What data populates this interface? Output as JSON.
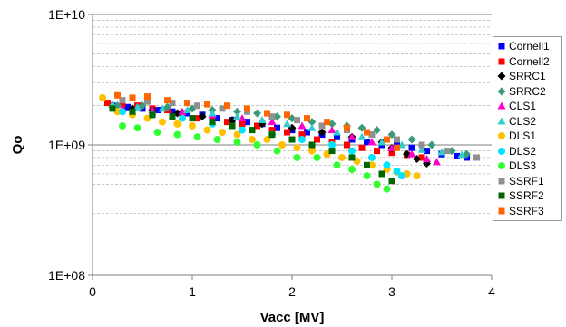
{
  "chart_data": {
    "type": "scatter",
    "xlabel": "Vacc [MV]",
    "ylabel": "Qo",
    "xlim": [
      0,
      4
    ],
    "ylim": [
      100000000.0,
      10000000000.0
    ],
    "y_scale": "log",
    "x_ticks": [
      "0",
      "1",
      "2",
      "3",
      "4"
    ],
    "y_ticks": [
      "1E+08",
      "1E+09",
      "1E+10"
    ],
    "grid": true,
    "legend_position": "right",
    "series": [
      {
        "name": "Cornell1",
        "color": "#0000ff",
        "marker": "square",
        "x": [
          0.2,
          0.35,
          0.5,
          0.65,
          0.8,
          0.95,
          1.1,
          1.25,
          1.4,
          1.55,
          1.7,
          1.85,
          2.0,
          2.15,
          2.3,
          2.45,
          2.6,
          2.75,
          2.9,
          3.05,
          3.2,
          3.35,
          3.5,
          3.65,
          3.75
        ],
        "y": [
          2000000000.0,
          1950000000.0,
          1900000000.0,
          1850000000.0,
          1800000000.0,
          1750000000.0,
          1700000000.0,
          1600000000.0,
          1550000000.0,
          1500000000.0,
          1450000000.0,
          1350000000.0,
          1300000000.0,
          1250000000.0,
          1200000000.0,
          1150000000.0,
          1100000000.0,
          1050000000.0,
          1000000000.0,
          1000000000.0,
          950000000.0,
          900000000.0,
          850000000.0,
          820000000.0,
          800000000.0
        ]
      },
      {
        "name": "Cornell2",
        "color": "#ff0000",
        "marker": "square",
        "x": [
          0.15,
          0.3,
          0.45,
          0.6,
          0.75,
          0.9,
          1.05,
          1.2,
          1.35,
          1.5,
          1.65,
          1.8,
          1.95,
          2.1,
          2.25,
          2.4,
          2.55,
          2.7,
          2.85,
          3.0,
          3.15,
          3.3
        ],
        "y": [
          2100000000.0,
          2050000000.0,
          2000000000.0,
          1900000000.0,
          1850000000.0,
          1750000000.0,
          1600000000.0,
          1550000000.0,
          1500000000.0,
          1450000000.0,
          1400000000.0,
          1300000000.0,
          1250000000.0,
          1200000000.0,
          1100000000.0,
          1050000000.0,
          1000000000.0,
          950000000.0,
          900000000.0,
          870000000.0,
          840000000.0,
          800000000.0
        ]
      },
      {
        "name": "SRRC1",
        "color": "#000000",
        "marker": "diamond",
        "x": [
          0.2,
          0.4,
          0.6,
          0.85,
          1.1,
          1.4,
          1.7,
          2.0,
          2.3,
          2.6,
          2.9,
          3.0,
          3.15,
          3.25,
          3.35
        ],
        "y": [
          1950000000.0,
          1900000000.0,
          1850000000.0,
          1750000000.0,
          1650000000.0,
          1550000000.0,
          1450000000.0,
          1350000000.0,
          1250000000.0,
          1150000000.0,
          1050000000.0,
          950000000.0,
          850000000.0,
          780000000.0,
          720000000.0
        ]
      },
      {
        "name": "SRRC2",
        "color": "#3a9a7a",
        "marker": "diamond",
        "x": [
          0.25,
          0.5,
          0.75,
          1.0,
          1.2,
          1.45,
          1.65,
          1.85,
          2.0,
          2.2,
          2.4,
          2.55,
          2.7,
          2.85,
          3.0,
          3.2,
          3.4,
          3.6,
          3.75
        ],
        "y": [
          2000000000.0,
          2000000000.0,
          1950000000.0,
          1900000000.0,
          1850000000.0,
          1800000000.0,
          1750000000.0,
          1650000000.0,
          1600000000.0,
          1500000000.0,
          1450000000.0,
          1400000000.0,
          1350000000.0,
          1300000000.0,
          1200000000.0,
          1100000000.0,
          1000000000.0,
          900000000.0,
          850000000.0
        ]
      },
      {
        "name": "CLS1",
        "color": "#ff00cc",
        "marker": "triangle",
        "x": [
          0.3,
          0.6,
          0.9,
          1.2,
          1.5,
          1.8,
          2.1,
          2.4,
          2.6,
          2.8,
          3.0,
          3.2,
          3.35,
          3.45
        ],
        "y": [
          1900000000.0,
          1850000000.0,
          1800000000.0,
          1700000000.0,
          1600000000.0,
          1500000000.0,
          1400000000.0,
          1300000000.0,
          1150000000.0,
          1050000000.0,
          950000000.0,
          850000000.0,
          780000000.0,
          740000000.0
        ]
      },
      {
        "name": "CLS2",
        "color": "#33cccc",
        "marker": "triangle",
        "x": [
          0.2,
          0.45,
          0.7,
          0.95,
          1.2,
          1.45,
          1.7,
          1.95,
          2.2,
          2.45,
          2.7,
          2.9,
          3.1,
          3.3,
          3.5,
          3.7
        ],
        "y": [
          2050000000.0,
          1950000000.0,
          1900000000.0,
          1850000000.0,
          1750000000.0,
          1650000000.0,
          1550000000.0,
          1450000000.0,
          1350000000.0,
          1250000000.0,
          1150000000.0,
          1050000000.0,
          1000000000.0,
          920000000.0,
          880000000.0,
          840000000.0
        ]
      },
      {
        "name": "DLS1",
        "color": "#ffc000",
        "marker": "circle",
        "x": [
          0.1,
          0.25,
          0.4,
          0.55,
          0.7,
          0.85,
          1.0,
          1.15,
          1.3,
          1.45,
          1.6,
          1.75,
          1.9,
          2.05,
          2.2,
          2.35,
          2.5,
          2.65,
          2.8,
          2.95,
          3.05,
          3.15,
          3.25
        ],
        "y": [
          2300000000.0,
          1800000000.0,
          1700000000.0,
          1600000000.0,
          1500000000.0,
          1450000000.0,
          1400000000.0,
          1300000000.0,
          1250000000.0,
          1200000000.0,
          1100000000.0,
          1100000000.0,
          1000000000.0,
          950000000.0,
          900000000.0,
          850000000.0,
          800000000.0,
          750000000.0,
          700000000.0,
          650000000.0,
          620000000.0,
          600000000.0,
          580000000.0
        ]
      },
      {
        "name": "DLS2",
        "color": "#00e5ff",
        "marker": "circle",
        "x": [
          0.3,
          0.6,
          0.9,
          1.2,
          1.5,
          1.8,
          2.1,
          2.4,
          2.6,
          2.8,
          2.95,
          3.05,
          3.1
        ],
        "y": [
          1800000000.0,
          1700000000.0,
          1600000000.0,
          1450000000.0,
          1300000000.0,
          1200000000.0,
          1100000000.0,
          1000000000.0,
          900000000.0,
          800000000.0,
          700000000.0,
          630000000.0,
          580000000.0
        ]
      },
      {
        "name": "DLS3",
        "color": "#33ff33",
        "marker": "circle",
        "x": [
          0.3,
          0.45,
          0.65,
          0.85,
          1.05,
          1.25,
          1.45,
          1.65,
          1.85,
          2.05,
          2.25,
          2.45,
          2.6,
          2.75,
          2.85,
          2.95
        ],
        "y": [
          1400000000.0,
          1350000000.0,
          1250000000.0,
          1200000000.0,
          1150000000.0,
          1100000000.0,
          1050000000.0,
          1000000000.0,
          900000000.0,
          800000000.0,
          800000000.0,
          700000000.0,
          650000000.0,
          580000000.0,
          500000000.0,
          460000000.0
        ]
      },
      {
        "name": "SSRF1",
        "color": "#909090",
        "marker": "square",
        "x": [
          0.3,
          0.55,
          0.8,
          1.05,
          1.3,
          1.55,
          1.8,
          2.05,
          2.3,
          2.55,
          2.8,
          3.05,
          3.3,
          3.55,
          3.85
        ],
        "y": [
          2200000000.0,
          2150000000.0,
          2100000000.0,
          2000000000.0,
          1900000000.0,
          1800000000.0,
          1650000000.0,
          1550000000.0,
          1400000000.0,
          1300000000.0,
          1200000000.0,
          1100000000.0,
          1000000000.0,
          900000000.0,
          800000000.0
        ]
      },
      {
        "name": "SSRF2",
        "color": "#006600",
        "marker": "square",
        "x": [
          0.2,
          0.4,
          0.6,
          0.8,
          1.0,
          1.2,
          1.4,
          1.6,
          1.8,
          2.0,
          2.2,
          2.4,
          2.6,
          2.75,
          2.9,
          3.0
        ],
        "y": [
          1900000000.0,
          1800000000.0,
          1700000000.0,
          1650000000.0,
          1600000000.0,
          1500000000.0,
          1400000000.0,
          1300000000.0,
          1200000000.0,
          1100000000.0,
          1000000000.0,
          900000000.0,
          800000000.0,
          700000000.0,
          600000000.0,
          530000000.0
        ]
      },
      {
        "name": "SSRF3",
        "color": "#ff6600",
        "marker": "square",
        "x": [
          0.25,
          0.4,
          0.55,
          0.75,
          0.95,
          1.15,
          1.35,
          1.55,
          1.75,
          1.95,
          2.15,
          2.35,
          2.55,
          2.75,
          2.95,
          3.05
        ],
        "y": [
          2400000000.0,
          2300000000.0,
          2350000000.0,
          2200000000.0,
          2100000000.0,
          2050000000.0,
          2000000000.0,
          1900000000.0,
          1750000000.0,
          1700000000.0,
          1600000000.0,
          1500000000.0,
          1350000000.0,
          1250000000.0,
          1100000000.0,
          950000000.0
        ]
      }
    ]
  }
}
